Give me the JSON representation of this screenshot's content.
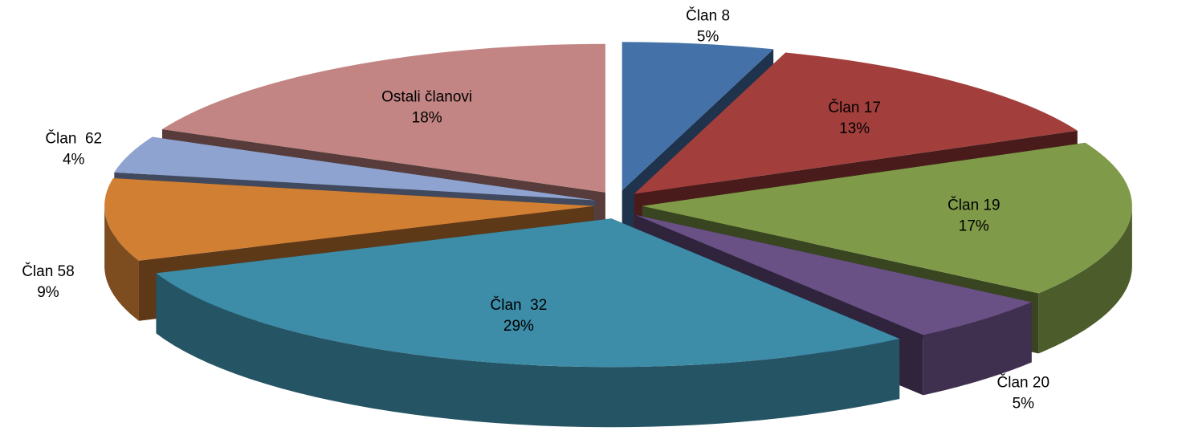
{
  "chart_data": {
    "type": "pie3d",
    "categories": [
      "Član 8",
      "Član 17",
      "Član 19",
      "Član 20",
      "Član  32",
      "Član 58",
      "Član  62",
      "Ostali članovi"
    ],
    "values": [
      5,
      13,
      17,
      5,
      29,
      9,
      4,
      18
    ],
    "value_labels": [
      "5%",
      "13%",
      "17%",
      "5%",
      "29%",
      "9%",
      "4%",
      "18%"
    ],
    "colors": [
      "#4472a8",
      "#a23f3c",
      "#7f9a48",
      "#695085",
      "#3d8ca8",
      "#d17f33",
      "#8ea3cf",
      "#c28583"
    ]
  }
}
